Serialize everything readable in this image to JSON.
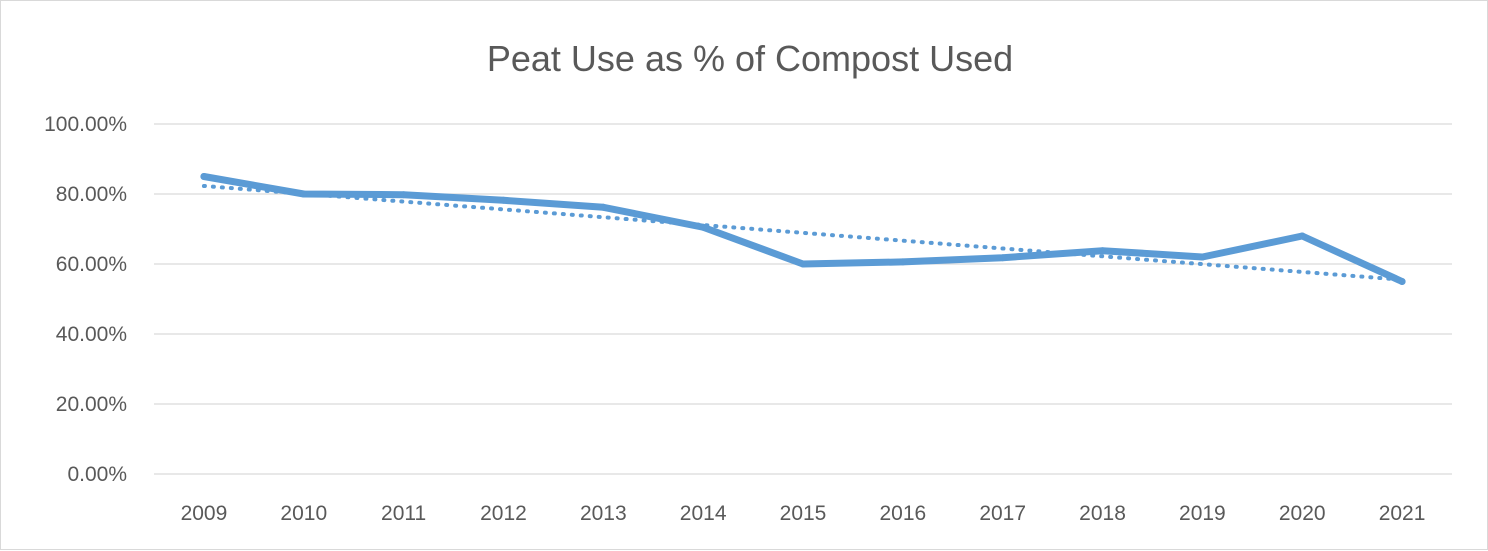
{
  "chart_data": {
    "type": "line",
    "title": "Peat Use as % of Compost Used",
    "xlabel": "",
    "ylabel": "",
    "categories": [
      "2009",
      "2010",
      "2011",
      "2012",
      "2013",
      "2014",
      "2015",
      "2016",
      "2017",
      "2018",
      "2019",
      "2020",
      "2021"
    ],
    "series": [
      {
        "values": [
          85.0,
          80.0,
          79.8,
          78.2,
          76.2,
          70.5,
          60.0,
          60.6,
          61.8,
          63.8,
          62.0,
          68.0,
          55.0
        ],
        "color": "#5b9bd5",
        "style": "solid"
      }
    ],
    "trendline": {
      "kind": "linear",
      "start": 82.3,
      "end": 55.5,
      "color": "#5b9bd5",
      "style": "dotted"
    },
    "ylim": [
      0,
      100
    ],
    "yticks": [
      0,
      20,
      40,
      60,
      80,
      100
    ],
    "ytick_labels": [
      "0.00%",
      "20.00%",
      "40.00%",
      "60.00%",
      "80.00%",
      "100.00%"
    ],
    "grid": true,
    "legend": "none"
  }
}
